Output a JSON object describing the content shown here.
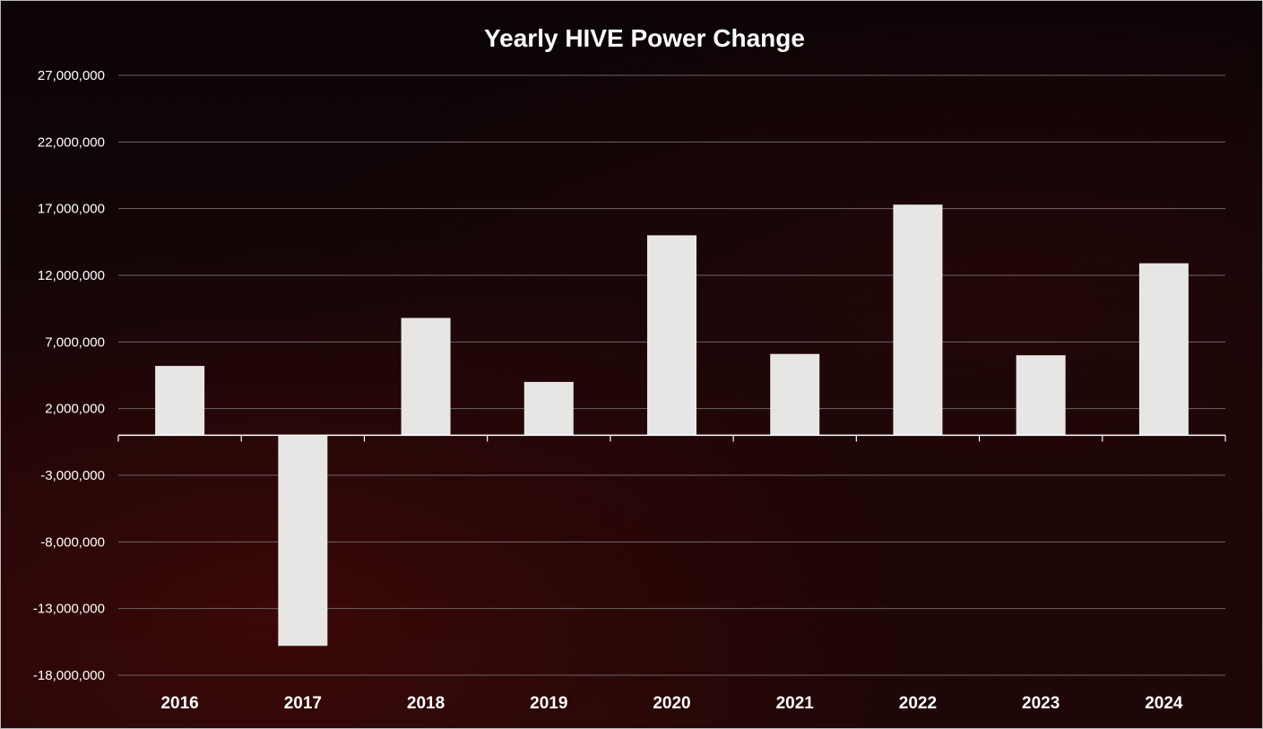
{
  "chart_data": {
    "type": "bar",
    "title": "Yearly HIVE Power Change",
    "xlabel": "",
    "ylabel": "",
    "categories": [
      "2016",
      "2017",
      "2018",
      "2019",
      "2020",
      "2021",
      "2022",
      "2023",
      "2024"
    ],
    "values": [
      5200000,
      -15800000,
      8800000,
      4000000,
      15000000,
      6100000,
      17300000,
      6000000,
      12900000
    ],
    "ylim": [
      -18000000,
      27000000
    ],
    "yticks": [
      27000000,
      22000000,
      17000000,
      12000000,
      7000000,
      2000000,
      -3000000,
      -8000000,
      -13000000,
      -18000000
    ],
    "ytick_labels": [
      "27,000,000",
      "22,000,000",
      "17,000,000",
      "12,000,000",
      "7,000,000",
      "2,000,000",
      "-3,000,000",
      "-8,000,000",
      "-13,000,000",
      "-18,000,000"
    ],
    "grid": true,
    "legend": "none",
    "colors": {
      "bar": "#e8e6e5",
      "grid": "#6e6466",
      "axis": "#ffffff",
      "text": "#ffffff"
    }
  }
}
